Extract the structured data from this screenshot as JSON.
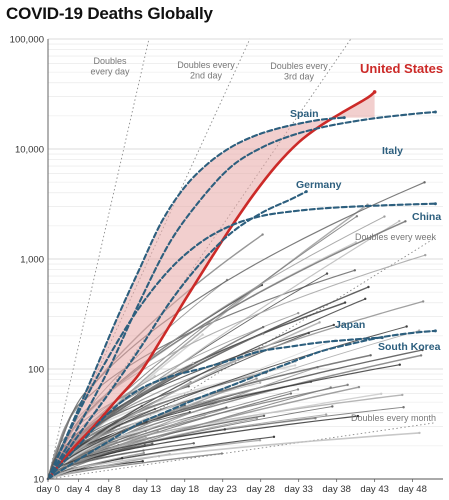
{
  "chart_data": {
    "type": "line",
    "title": "COVID-19 Deaths Globally",
    "xlabel": "",
    "ylabel": "",
    "y_scale": "log",
    "ylim": [
      10,
      100000
    ],
    "xlim": [
      0,
      52
    ],
    "grid": true,
    "x_tick_values": [
      0,
      4,
      8,
      13,
      18,
      23,
      28,
      33,
      38,
      43,
      48
    ],
    "x_tick_labels": [
      "day 0",
      "day 4",
      "day 8",
      "day 13",
      "day 18",
      "day 23",
      "day 28",
      "day 33",
      "day 38",
      "day 43",
      "day 48"
    ],
    "y_tick_values": [
      10,
      100,
      1000,
      10000,
      100000
    ],
    "y_tick_labels": [
      "10",
      "100",
      "1,000",
      "10,000",
      "100,000"
    ],
    "reference_lines": [
      {
        "label": "Doubles every day",
        "doubling_days": 1
      },
      {
        "label": "Doubles every 2nd day",
        "doubling_days": 2
      },
      {
        "label": "Doubles every 3rd day",
        "doubling_days": 3
      },
      {
        "label": "Doubles every week",
        "doubling_days": 7
      },
      {
        "label": "Doubles every month",
        "doubling_days": 30
      }
    ],
    "series": [
      {
        "name": "United States",
        "role": "highlight",
        "color": "#cc2a28",
        "x": [
          0,
          3,
          6,
          9,
          12,
          15,
          18,
          21,
          24,
          27,
          30,
          33,
          36,
          39,
          42,
          43
        ],
        "y": [
          10,
          18,
          30,
          52,
          90,
          190,
          420,
          900,
          1900,
          3800,
          7000,
          11500,
          16500,
          22000,
          29000,
          33000
        ]
      },
      {
        "name": "Spain",
        "role": "key",
        "color": "#2d5f7e",
        "x": [
          0,
          3,
          6,
          9,
          12,
          15,
          18,
          21,
          24,
          27,
          30,
          33,
          36,
          39
        ],
        "y": [
          10,
          30,
          90,
          280,
          800,
          2200,
          4500,
          7300,
          10300,
          13000,
          15200,
          17000,
          18500,
          19300
        ]
      },
      {
        "name": "Italy",
        "role": "key",
        "color": "#2d5f7e",
        "x": [
          0,
          4,
          8,
          12,
          16,
          20,
          24,
          28,
          32,
          36,
          40,
          44,
          48,
          51
        ],
        "y": [
          10,
          30,
          100,
          400,
          1400,
          3400,
          6800,
          10200,
          13200,
          15700,
          17700,
          19400,
          20800,
          21700
        ]
      },
      {
        "name": "Germany",
        "role": "key",
        "color": "#2d5f7e",
        "x": [
          0,
          4,
          8,
          12,
          16,
          20,
          24,
          28,
          32,
          34
        ],
        "y": [
          10,
          25,
          60,
          150,
          400,
          900,
          1700,
          2600,
          3500,
          4100
        ]
      },
      {
        "name": "China",
        "role": "key",
        "color": "#2d5f7e",
        "x": [
          0,
          4,
          8,
          12,
          16,
          20,
          24,
          28,
          32,
          36,
          40,
          44,
          48,
          51
        ],
        "y": [
          10,
          40,
          130,
          360,
          800,
          1400,
          2000,
          2450,
          2700,
          2880,
          2990,
          3070,
          3140,
          3180
        ]
      },
      {
        "name": "Japan",
        "role": "key",
        "color": "#2d5f7e",
        "x": [
          0,
          4,
          8,
          12,
          16,
          20,
          24,
          28,
          32,
          36,
          40,
          44,
          48,
          51
        ],
        "y": [
          10,
          15,
          22,
          32,
          42,
          55,
          70,
          90,
          115,
          145,
          170,
          195,
          213,
          222
        ]
      },
      {
        "name": "South Korea",
        "role": "key",
        "color": "#2d5f7e",
        "x": [
          0,
          4,
          8,
          12,
          16,
          20,
          24,
          28,
          32,
          36,
          40,
          44
        ],
        "y": [
          10,
          20,
          40,
          65,
          85,
          100,
          120,
          145,
          160,
          175,
          185,
          193
        ]
      }
    ]
  }
}
